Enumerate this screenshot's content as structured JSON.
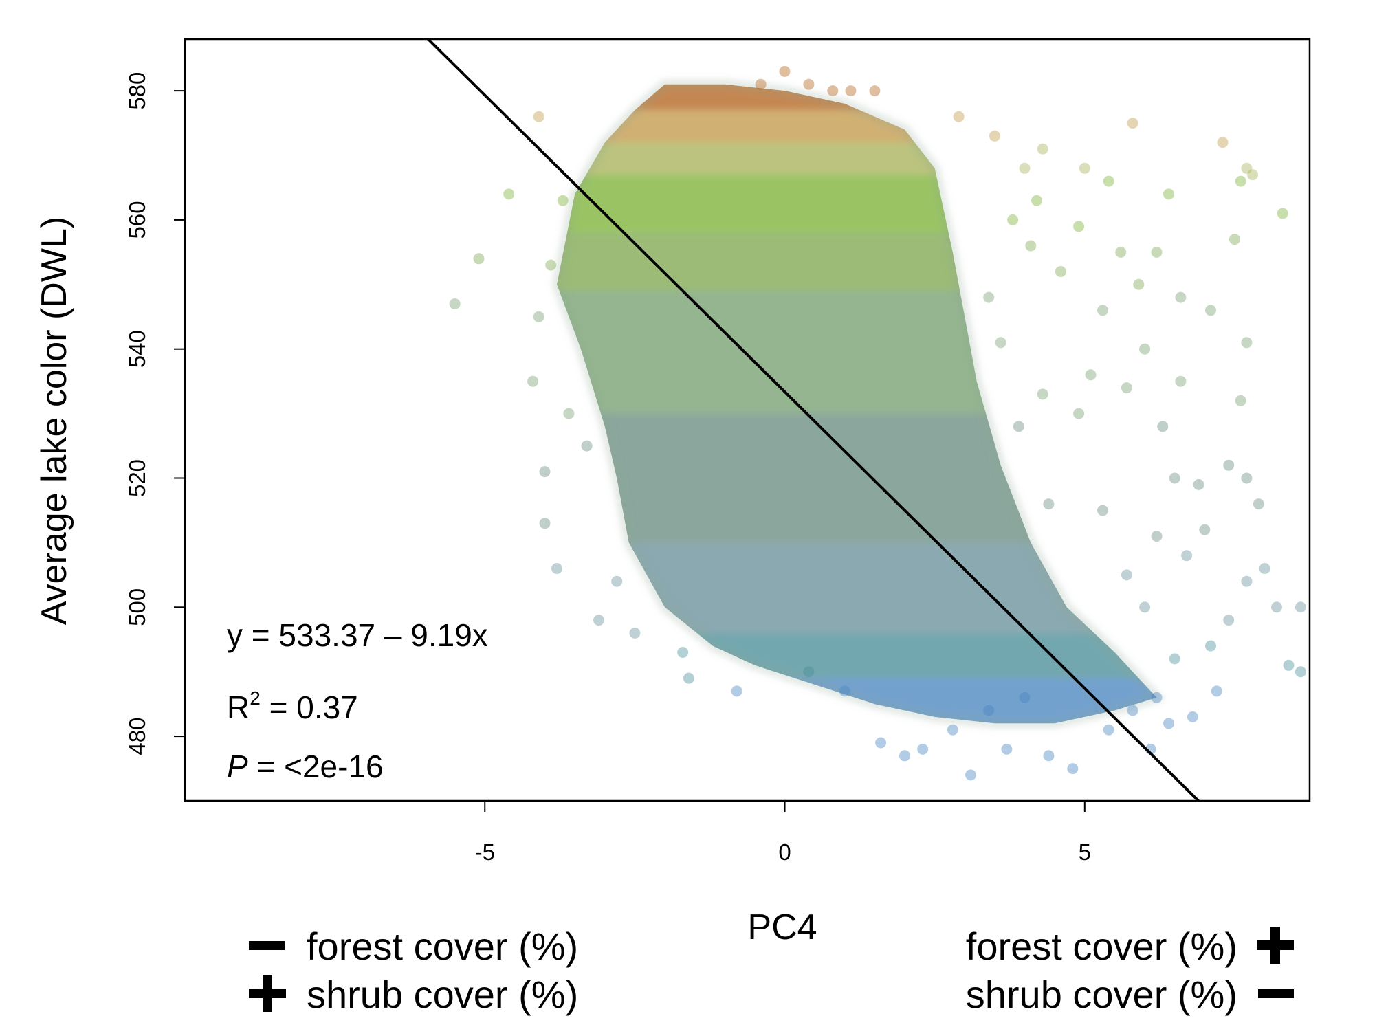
{
  "chart_data": {
    "type": "scatter",
    "title": "",
    "xlabel": "PC4",
    "ylabel": "Average lake color (DWL)",
    "xlim": [
      -10.0,
      8.75
    ],
    "ylim": [
      470.0,
      588.0
    ],
    "x_ticks": [
      -5,
      0,
      5
    ],
    "y_ticks": [
      480,
      500,
      520,
      540,
      560,
      580
    ],
    "grid": false,
    "regression": {
      "intercept": 533.37,
      "slope": -9.19,
      "equation_label": "y = 533.37 – 9.19x",
      "r2_label": "R",
      "r2_sup": "2",
      "r2_value": " = 0.37",
      "p_label": "P",
      "p_value": " = <2e-16"
    },
    "color_bands": [
      {
        "ymin": 577,
        "ymax": 588,
        "color": "#b5651d"
      },
      {
        "ymin": 572,
        "ymax": 577,
        "color": "#c49a4a"
      },
      {
        "ymin": 567,
        "ymax": 572,
        "color": "#a8b25a"
      },
      {
        "ymin": 558,
        "ymax": 567,
        "color": "#7db33a"
      },
      {
        "ymin": 549,
        "ymax": 558,
        "color": "#7fa850"
      },
      {
        "ymin": 530,
        "ymax": 549,
        "color": "#76a070"
      },
      {
        "ymin": 510,
        "ymax": 530,
        "color": "#6a8d80"
      },
      {
        "ymin": 496,
        "ymax": 510,
        "color": "#6a919a"
      },
      {
        "ymin": 489,
        "ymax": 496,
        "color": "#4a8e98"
      },
      {
        "ymin": 470,
        "ymax": 489,
        "color": "#4a86c0"
      }
    ],
    "cloud_outline": [
      [
        -3.5,
        564
      ],
      [
        -3.0,
        572
      ],
      [
        -2.5,
        577
      ],
      [
        -2.0,
        581
      ],
      [
        -1.0,
        581
      ],
      [
        0.0,
        580
      ],
      [
        1.0,
        578
      ],
      [
        2.0,
        574
      ],
      [
        2.5,
        568
      ],
      [
        2.8,
        555
      ],
      [
        3.0,
        545
      ],
      [
        3.2,
        535
      ],
      [
        3.6,
        522
      ],
      [
        4.1,
        510
      ],
      [
        4.7,
        500
      ],
      [
        5.5,
        493
      ],
      [
        6.2,
        486
      ],
      [
        5.5,
        484
      ],
      [
        4.5,
        482
      ],
      [
        3.5,
        482
      ],
      [
        2.5,
        483
      ],
      [
        1.5,
        485
      ],
      [
        0.5,
        488
      ],
      [
        -0.5,
        491
      ],
      [
        -1.2,
        494
      ],
      [
        -2.0,
        500
      ],
      [
        -2.6,
        510
      ],
      [
        -2.8,
        520
      ],
      [
        -3.0,
        528
      ],
      [
        -3.4,
        540
      ],
      [
        -3.8,
        550
      ]
    ],
    "outlier_points": [
      [
        -5.5,
        547
      ],
      [
        -5.1,
        554
      ],
      [
        -4.6,
        564
      ],
      [
        -4.1,
        576
      ],
      [
        -4.2,
        535
      ],
      [
        -4.0,
        521
      ],
      [
        -4.0,
        513
      ],
      [
        -3.8,
        506
      ],
      [
        -3.1,
        498
      ],
      [
        -2.8,
        504
      ],
      [
        -2.5,
        496
      ],
      [
        -1.7,
        493
      ],
      [
        -1.6,
        489
      ],
      [
        -0.8,
        487
      ],
      [
        -0.4,
        581
      ],
      [
        0.0,
        583
      ],
      [
        0.4,
        581
      ],
      [
        0.8,
        580
      ],
      [
        1.1,
        580
      ],
      [
        1.5,
        580
      ],
      [
        2.9,
        576
      ],
      [
        3.5,
        573
      ],
      [
        4.0,
        568
      ],
      [
        3.1,
        474
      ],
      [
        3.7,
        478
      ],
      [
        4.4,
        477
      ],
      [
        4.8,
        475
      ],
      [
        5.4,
        481
      ],
      [
        5.8,
        484
      ],
      [
        6.1,
        478
      ],
      [
        6.2,
        486
      ],
      [
        6.4,
        482
      ],
      [
        6.5,
        492
      ],
      [
        6.8,
        483
      ],
      [
        7.1,
        494
      ],
      [
        7.2,
        487
      ],
      [
        7.4,
        498
      ],
      [
        7.7,
        504
      ],
      [
        8.0,
        506
      ],
      [
        8.2,
        500
      ],
      [
        8.4,
        491
      ],
      [
        8.6,
        500
      ],
      [
        8.6,
        490
      ],
      [
        7.9,
        516
      ],
      [
        7.7,
        520
      ],
      [
        7.4,
        522
      ],
      [
        7.6,
        532
      ],
      [
        7.1,
        546
      ],
      [
        7.7,
        541
      ],
      [
        7.5,
        557
      ],
      [
        7.6,
        566
      ],
      [
        7.8,
        567
      ],
      [
        8.3,
        561
      ],
      [
        7.3,
        572
      ],
      [
        7.7,
        568
      ],
      [
        6.4,
        564
      ],
      [
        5.8,
        575
      ],
      [
        6.2,
        555
      ],
      [
        5.9,
        550
      ],
      [
        6.6,
        548
      ],
      [
        5.0,
        568
      ],
      [
        5.4,
        566
      ],
      [
        5.6,
        555
      ],
      [
        4.3,
        571
      ],
      [
        4.2,
        563
      ],
      [
        4.9,
        559
      ],
      [
        5.3,
        546
      ],
      [
        6.0,
        540
      ],
      [
        6.6,
        535
      ],
      [
        6.3,
        528
      ],
      [
        6.5,
        520
      ],
      [
        6.9,
        519
      ],
      [
        7.0,
        512
      ],
      [
        6.7,
        508
      ],
      [
        6.2,
        511
      ],
      [
        5.7,
        534
      ],
      [
        5.1,
        536
      ],
      [
        4.9,
        530
      ],
      [
        4.6,
        552
      ],
      [
        4.1,
        556
      ],
      [
        3.8,
        560
      ],
      [
        3.4,
        548
      ],
      [
        3.6,
        541
      ],
      [
        4.3,
        533
      ],
      [
        3.9,
        528
      ],
      [
        5.3,
        515
      ],
      [
        5.7,
        505
      ],
      [
        6.0,
        500
      ],
      [
        4.4,
        516
      ],
      [
        -3.7,
        563
      ],
      [
        -3.9,
        553
      ],
      [
        -4.1,
        545
      ],
      [
        -3.6,
        530
      ],
      [
        -3.3,
        525
      ],
      [
        0.4,
        490
      ],
      [
        1.0,
        487
      ],
      [
        1.6,
        479
      ],
      [
        2.0,
        477
      ],
      [
        2.3,
        478
      ],
      [
        2.8,
        481
      ],
      [
        3.4,
        484
      ],
      [
        4.0,
        486
      ]
    ],
    "left_annotation": [
      "forest cover (%)",
      "shrub cover (%)"
    ],
    "right_annotation": [
      "forest cover (%)",
      "shrub cover (%)"
    ],
    "left_signs": [
      "minus",
      "plus"
    ],
    "right_signs": [
      "plus",
      "minus"
    ]
  }
}
